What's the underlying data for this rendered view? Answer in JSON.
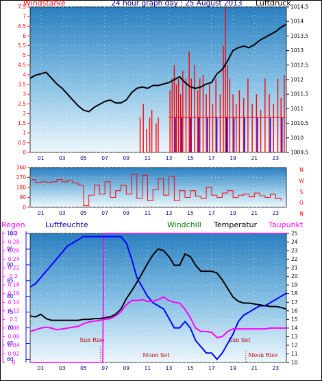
{
  "colors": {
    "wind": "#ff0000",
    "wind_dir_blue": "#0000ff",
    "pressure": "#000000",
    "rain": "#ff00ff",
    "humidity": "#0000ff",
    "windchill": "#008000",
    "temperature": "#000000",
    "dewpoint": "#ff00ff"
  },
  "chart_data": [
    {
      "type": "line",
      "title": "24 hour graph day : 25 August 2013",
      "left_label": "Windstärke",
      "right_label": "Luftdruck",
      "x_ticks": [
        "01",
        "03",
        "05",
        "07",
        "09",
        "11",
        "13",
        "15",
        "17",
        "19",
        "21",
        "23"
      ],
      "y_left_ticks": [
        "0",
        "0.5",
        "1",
        "1.5",
        "2",
        "2.5",
        "3",
        "3.5",
        "4",
        "4.5",
        "5",
        "5.5",
        "6",
        "6.5",
        "7",
        "7.5"
      ],
      "y_right_ticks": [
        "1009.5",
        "1010",
        "1010.5",
        "1011",
        "1011.5",
        "1012",
        "1012.5",
        "1013",
        "1013.5",
        "1014",
        "1014.5"
      ],
      "y_left_range": [
        0,
        7.5
      ],
      "y_right_range": [
        1009.5,
        1014.5
      ],
      "series": [
        {
          "values_axis": "right",
          "x": [
            0,
            0.5,
            1,
            1.5,
            2,
            2.5,
            3,
            3.5,
            4,
            4.5,
            5,
            5.5,
            6,
            6.5,
            7,
            7.5,
            8,
            8.5,
            9,
            9.5,
            10,
            10.5,
            11,
            11.5,
            12,
            12.5,
            13,
            13.5,
            14,
            14.5,
            15,
            15.5,
            16,
            16.5,
            17,
            17.5,
            18,
            18.5,
            19,
            19.5,
            20,
            20.5,
            21,
            21.5,
            22,
            22.5,
            23,
            23.5,
            24
          ],
          "y": [
            1012.05,
            1012.15,
            1012.2,
            1012.25,
            1012.05,
            1011.85,
            1011.7,
            1011.5,
            1011.3,
            1011.1,
            1010.95,
            1010.9,
            1011.05,
            1011.15,
            1011.25,
            1011.3,
            1011.2,
            1011.2,
            1011.3,
            1011.55,
            1011.7,
            1011.75,
            1011.7,
            1011.8,
            1011.8,
            1011.85,
            1011.9,
            1012,
            1012.1,
            1011.9,
            1011.75,
            1011.7,
            1011.75,
            1011.85,
            1011.9,
            1012.2,
            1012.35,
            1012.65,
            1013.0,
            1013.1,
            1013.15,
            1013.1,
            1013.2,
            1013.35,
            1013.45,
            1013.55,
            1013.65,
            1013.8,
            1013.9
          ]
        }
      ],
      "wind_gusts": {
        "hours": [
          10.3,
          10.6,
          10.9,
          11.2,
          11.4,
          11.8,
          12.0,
          13.1,
          13.3,
          13.5,
          13.7,
          13.9,
          14.1,
          14.3,
          14.6,
          14.9,
          15.1,
          15.4,
          15.7,
          15.9,
          16.2,
          16.5,
          16.8,
          17.1,
          17.4,
          17.8,
          18.1,
          18.3,
          18.5,
          18.7,
          19.0,
          19.3,
          19.6,
          20.0,
          20.4,
          20.8,
          21.2,
          21.6,
          22.0,
          22.4,
          22.8,
          23.2,
          23.5,
          23.8
        ],
        "values": [
          1.8,
          2.5,
          1.2,
          1.8,
          2.2,
          1.5,
          1.8,
          3.2,
          3.8,
          4.5,
          3.5,
          3.8,
          3.0,
          4.2,
          3.8,
          5.2,
          3.8,
          4.5,
          3.2,
          3.8,
          4.0,
          3.0,
          3.5,
          2.5,
          3.8,
          3.0,
          5.5,
          7.5,
          4.5,
          3.8,
          3.0,
          2.5,
          3.2,
          2.8,
          3.8,
          2.5,
          3.0,
          2.2,
          3.8,
          3.0,
          2.5,
          3.8,
          2.8,
          4.0
        ]
      }
    },
    {
      "type": "line",
      "right_labels": [
        "N",
        "W",
        "S",
        "O",
        "N"
      ],
      "x_ticks": [
        "01",
        "03",
        "05",
        "07",
        "09",
        "11",
        "13",
        "15",
        "17",
        "19",
        "21",
        "23"
      ],
      "y_ticks": [
        "0",
        "90",
        "180",
        "270",
        "360"
      ],
      "y_range": [
        0,
        360
      ],
      "series": [
        {
          "x": [
            0.2,
            0.5,
            1,
            1.5,
            2,
            2.5,
            3,
            3.5,
            4,
            4.5,
            5,
            5.5,
            6,
            6.5,
            7,
            7.5,
            8,
            8.5,
            9,
            9.5,
            10,
            10.5,
            11,
            11.5,
            12,
            12.5,
            13,
            13.5,
            14,
            14.5,
            15,
            15.5,
            16,
            16.5,
            17,
            17.5,
            18,
            18.5,
            19,
            19.5,
            20,
            20.5,
            21,
            21.5,
            22,
            22.5,
            23,
            23.5
          ],
          "y": [
            250,
            225,
            230,
            225,
            230,
            250,
            230,
            240,
            220,
            200,
            15,
            110,
            200,
            120,
            230,
            90,
            150,
            200,
            120,
            300,
            80,
            290,
            60,
            160,
            260,
            110,
            280,
            60,
            150,
            90,
            150,
            100,
            80,
            180,
            110,
            90,
            130,
            150,
            90,
            110,
            120,
            95,
            130,
            105,
            90,
            120,
            80,
            60
          ]
        }
      ]
    },
    {
      "type": "line",
      "left_labels": [
        "Regen",
        "Luftfeuchte"
      ],
      "legend": [
        "Windchill",
        "Temperatur",
        "Taupunkt"
      ],
      "x_ticks": [
        "01",
        "03",
        "05",
        "07",
        "09",
        "11",
        "13",
        "15",
        "17",
        "19",
        "21",
        "23"
      ],
      "rain_ticks": [
        "0",
        "0.02",
        "0.04",
        "0.06",
        "0.08",
        "0.1",
        "0.12",
        "0.14",
        "0.16",
        "0.18",
        "0.2",
        "0.22",
        "0.24",
        "0.26",
        "0.28",
        "0.3"
      ],
      "rain_range": [
        0,
        0.3
      ],
      "humidity_ticks": [
        "60",
        "65",
        "70",
        "75",
        "80",
        "85",
        "90",
        "95",
        "100"
      ],
      "humidity_range": [
        59,
        100
      ],
      "temp_ticks": [
        "10",
        "11",
        "12",
        "13",
        "14",
        "15",
        "16",
        "17",
        "18",
        "19",
        "20",
        "21",
        "22",
        "23",
        "24",
        "25"
      ],
      "temp_range": [
        10,
        25
      ],
      "annotations": [
        "Sun Rise",
        "Moon Set",
        "Sun Set",
        "Moon Rise"
      ],
      "series": [
        {
          "name": "Luftfeuchte",
          "x": [
            0,
            0.5,
            1,
            1.5,
            2,
            2.5,
            3,
            3.5,
            4,
            4.5,
            5,
            5.5,
            6,
            6.5,
            7,
            7.5,
            8,
            8.5,
            9,
            9.5,
            10,
            10.5,
            11,
            11.5,
            12,
            12.5,
            13,
            13.5,
            14,
            14.5,
            15,
            15.5,
            16,
            16.5,
            17,
            17.5,
            18,
            18.5,
            19,
            19.5,
            20,
            20.5,
            21,
            21.5,
            22,
            22.5,
            23,
            23.5,
            24
          ],
          "y": [
            83,
            84,
            86,
            88,
            90,
            92,
            94,
            96,
            97,
            98,
            99,
            99,
            99,
            99,
            99,
            99,
            99,
            99,
            97,
            92,
            86,
            83,
            80,
            78,
            77,
            76,
            73,
            70,
            70,
            72,
            70,
            66,
            64,
            62,
            62,
            60,
            62,
            65,
            68,
            72,
            74,
            75,
            76,
            77,
            77,
            78,
            79,
            80,
            81
          ]
        },
        {
          "name": "Temperatur",
          "x": [
            0,
            0.5,
            1,
            1.5,
            2,
            2.5,
            3,
            3.5,
            4,
            4.5,
            5,
            5.5,
            6,
            6.5,
            7,
            7.5,
            8,
            8.5,
            9,
            9.5,
            10,
            10.5,
            11,
            11.5,
            12,
            12.5,
            13,
            13.5,
            14,
            14.5,
            15,
            15.5,
            16,
            16.5,
            17,
            17.5,
            18,
            18.5,
            19,
            19.5,
            20,
            20.5,
            21,
            21.5,
            22,
            22.5,
            23,
            23.5,
            24
          ],
          "y": [
            15.4,
            15.3,
            15.6,
            15.1,
            14.9,
            14.9,
            14.9,
            14.9,
            14.9,
            14.9,
            15.0,
            15.0,
            15.1,
            15.1,
            15.2,
            15.3,
            15.6,
            16.2,
            17.4,
            18.3,
            19.3,
            20.4,
            21.5,
            22.5,
            23.2,
            23.0,
            22.3,
            21.3,
            21.3,
            22.6,
            22.3,
            21.3,
            20.6,
            20.6,
            20.6,
            20.4,
            19.6,
            18.6,
            17.6,
            17.1,
            16.9,
            16.9,
            16.8,
            16.7,
            16.6,
            16.5,
            16.5,
            16.4,
            16.2
          ]
        },
        {
          "name": "Taupunkt",
          "x": [
            0,
            0.5,
            1,
            1.5,
            2,
            2.5,
            3,
            3.5,
            4,
            4.5,
            5,
            5.5,
            6,
            6.5,
            7,
            7.5,
            8,
            8.5,
            9,
            9.5,
            10,
            10.5,
            11,
            11.5,
            12,
            12.5,
            13,
            13.5,
            14,
            14.5,
            15,
            15.5,
            16,
            16.5,
            17,
            17.5,
            18,
            18.5,
            19,
            19.5,
            20,
            20.5,
            21,
            21.5,
            22,
            22.5,
            23,
            23.5,
            24
          ],
          "y": [
            13.6,
            13.8,
            14.0,
            14.1,
            14.0,
            13.8,
            13.9,
            14.0,
            14.1,
            14.2,
            14.5,
            14.7,
            14.8,
            14.9,
            15.0,
            15.1,
            15.4,
            15.9,
            16.7,
            17.2,
            17.2,
            17.3,
            17.1,
            17.1,
            17.3,
            17.6,
            17.2,
            17.0,
            16.9,
            16.2,
            15.2,
            14.0,
            13.6,
            13.6,
            13.5,
            12.9,
            13.0,
            13.6,
            13.9,
            13.9,
            13.9,
            13.9,
            13.9,
            13.9,
            13.9,
            14.0,
            14.0,
            14.0,
            14.0
          ]
        },
        {
          "name": "Regen",
          "x": [
            0,
            6.8,
            6.9,
            24
          ],
          "y": [
            0,
            0,
            0.3,
            0.3
          ]
        }
      ]
    }
  ]
}
